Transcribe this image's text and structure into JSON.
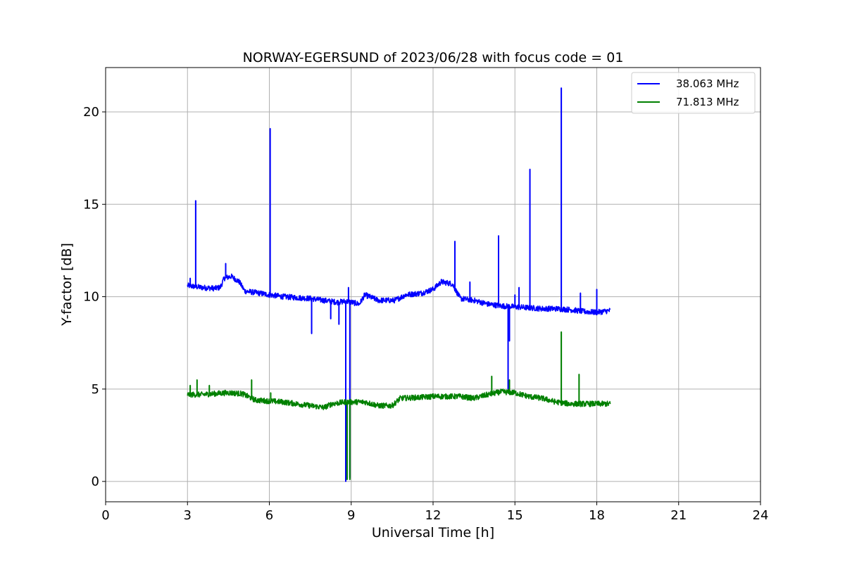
{
  "chart_data": {
    "type": "line",
    "title": "NORWAY-EGERSUND of 2023/06/28 with focus code = 01",
    "xlabel": "Universal Time [h]",
    "ylabel": "Y-factor [dB]",
    "xlim": [
      0,
      24
    ],
    "ylim": [
      -1.1,
      22.4
    ],
    "xticks": [
      0,
      3,
      6,
      9,
      12,
      15,
      18,
      21,
      24
    ],
    "yticks": [
      0,
      5,
      10,
      15,
      20
    ],
    "grid": true,
    "legend_position": "top-right",
    "series": [
      {
        "name": "38.063 MHz",
        "color": "#0000ff",
        "baseline": [
          [
            3.0,
            10.6
          ],
          [
            3.5,
            10.5
          ],
          [
            4.0,
            10.45
          ],
          [
            4.2,
            10.5
          ],
          [
            4.35,
            11.0
          ],
          [
            4.6,
            11.1
          ],
          [
            4.9,
            10.8
          ],
          [
            5.1,
            10.3
          ],
          [
            5.6,
            10.2
          ],
          [
            6.0,
            10.1
          ],
          [
            6.5,
            10.0
          ],
          [
            7.0,
            9.95
          ],
          [
            7.5,
            9.9
          ],
          [
            8.0,
            9.8
          ],
          [
            8.5,
            9.7
          ],
          [
            8.8,
            9.75
          ],
          [
            9.0,
            9.7
          ],
          [
            9.3,
            9.6
          ],
          [
            9.5,
            10.1
          ],
          [
            10.0,
            9.8
          ],
          [
            10.6,
            9.8
          ],
          [
            11.0,
            10.1
          ],
          [
            11.6,
            10.2
          ],
          [
            12.0,
            10.4
          ],
          [
            12.3,
            10.8
          ],
          [
            12.7,
            10.7
          ],
          [
            13.0,
            9.9
          ],
          [
            13.5,
            9.8
          ],
          [
            14.0,
            9.6
          ],
          [
            14.5,
            9.5
          ],
          [
            15.0,
            9.45
          ],
          [
            15.5,
            9.4
          ],
          [
            16.0,
            9.35
          ],
          [
            16.5,
            9.35
          ],
          [
            17.0,
            9.3
          ],
          [
            17.5,
            9.2
          ],
          [
            18.0,
            9.15
          ],
          [
            18.5,
            9.25
          ]
        ],
        "spikes": [
          [
            3.1,
            11.0
          ],
          [
            3.3,
            15.2
          ],
          [
            4.4,
            11.8
          ],
          [
            6.03,
            19.1
          ],
          [
            7.55,
            8.0
          ],
          [
            8.25,
            8.8
          ],
          [
            8.55,
            8.5
          ],
          [
            8.8,
            0.0
          ],
          [
            8.9,
            10.5
          ],
          [
            8.95,
            0.2
          ],
          [
            12.8,
            13.0
          ],
          [
            13.35,
            10.8
          ],
          [
            14.4,
            13.3
          ],
          [
            14.75,
            5.0
          ],
          [
            14.8,
            7.6
          ],
          [
            15.0,
            10.1
          ],
          [
            15.15,
            10.5
          ],
          [
            15.55,
            16.9
          ],
          [
            16.7,
            21.3
          ],
          [
            17.4,
            10.2
          ],
          [
            18.0,
            10.4
          ]
        ]
      },
      {
        "name": "71.813 MHz",
        "color": "#008000",
        "baseline": [
          [
            3.0,
            4.7
          ],
          [
            3.5,
            4.7
          ],
          [
            4.0,
            4.75
          ],
          [
            4.5,
            4.8
          ],
          [
            5.0,
            4.75
          ],
          [
            5.5,
            4.4
          ],
          [
            6.0,
            4.35
          ],
          [
            6.5,
            4.3
          ],
          [
            7.0,
            4.2
          ],
          [
            7.5,
            4.1
          ],
          [
            8.0,
            4.0
          ],
          [
            8.3,
            4.2
          ],
          [
            8.8,
            4.3
          ],
          [
            9.0,
            4.3
          ],
          [
            9.5,
            4.3
          ],
          [
            10.0,
            4.1
          ],
          [
            10.5,
            4.1
          ],
          [
            10.8,
            4.5
          ],
          [
            11.5,
            4.55
          ],
          [
            12.0,
            4.6
          ],
          [
            13.0,
            4.6
          ],
          [
            13.5,
            4.5
          ],
          [
            14.0,
            4.7
          ],
          [
            14.5,
            4.85
          ],
          [
            15.0,
            4.8
          ],
          [
            15.5,
            4.6
          ],
          [
            16.0,
            4.5
          ],
          [
            16.5,
            4.3
          ],
          [
            17.0,
            4.2
          ],
          [
            17.5,
            4.2
          ],
          [
            18.0,
            4.2
          ],
          [
            18.5,
            4.2
          ]
        ],
        "spikes": [
          [
            3.1,
            5.2
          ],
          [
            3.35,
            5.5
          ],
          [
            3.8,
            5.2
          ],
          [
            5.35,
            5.5
          ],
          [
            6.05,
            4.8
          ],
          [
            8.85,
            0.1
          ],
          [
            8.95,
            0.1
          ],
          [
            14.15,
            5.7
          ],
          [
            14.8,
            5.5
          ],
          [
            16.7,
            8.1
          ],
          [
            17.35,
            5.8
          ]
        ]
      }
    ]
  }
}
